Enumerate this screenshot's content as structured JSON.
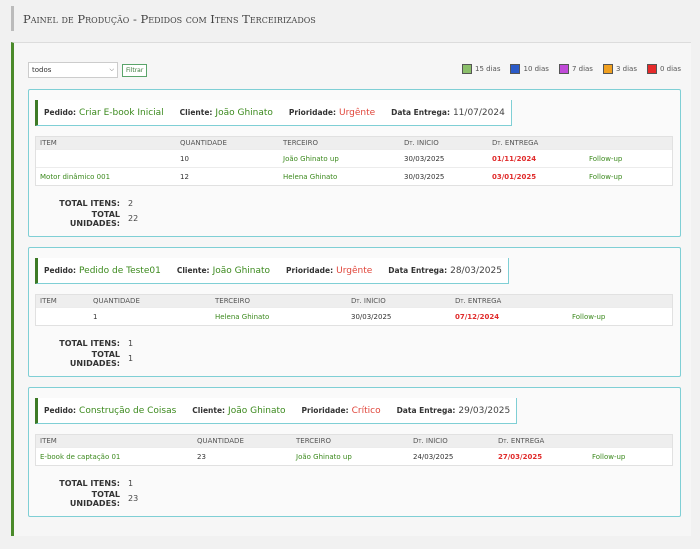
{
  "page": {
    "title": "Painel de Produção - Pedidos com Itens Terceirizados"
  },
  "filter": {
    "selected": "todos",
    "button_label": "Filtrar"
  },
  "legend": [
    {
      "label": "15 dias",
      "color": "#8bbf6a"
    },
    {
      "label": "10 dias",
      "color": "#2a5ac8"
    },
    {
      "label": "7 dias",
      "color": "#c04ad8"
    },
    {
      "label": "3 dias",
      "color": "#f0a020"
    },
    {
      "label": "0 dias",
      "color": "#e62a2a"
    }
  ],
  "labels": {
    "pedido": "Pedido:",
    "cliente": "Cliente:",
    "prioridade": "Prioridade:",
    "data_entrega": "Data Entrega:",
    "total_itens": "TOTAL ITENS:",
    "total_unidades": "TOTAL UNIDADES:",
    "columns": [
      "ITEM",
      "QUANTIDADE",
      "TERCEIRO",
      "Dt. INÍCIO",
      "Dt. ENTREGA",
      ""
    ]
  },
  "orders": [
    {
      "pedido": "Criar E-book Inicial",
      "cliente": "João Ghinato",
      "prioridade": "Urgênte",
      "data_entrega": "11/07/2024",
      "items": [
        {
          "item": "",
          "quantidade": "10",
          "terceiro": "João Ghinato up",
          "inicio": "30/03/2025",
          "entrega": "01/11/2024",
          "acao": "Follow-up"
        },
        {
          "item": "Motor dinâmico 001",
          "quantidade": "12",
          "terceiro": "Helena Ghinato",
          "inicio": "30/03/2025",
          "entrega": "03/01/2025",
          "acao": "Follow-up"
        }
      ],
      "total_itens": "2",
      "total_unidades": "22"
    },
    {
      "pedido": "Pedido de Teste01",
      "cliente": "João Ghinato",
      "prioridade": "Urgênte",
      "data_entrega": "28/03/2025",
      "items": [
        {
          "item": "",
          "quantidade": "1",
          "terceiro": "Helena Ghinato",
          "inicio": "30/03/2025",
          "entrega": "07/12/2024",
          "acao": "Follow-up"
        }
      ],
      "total_itens": "1",
      "total_unidades": "1"
    },
    {
      "pedido": "Construção de Coisas",
      "cliente": "João Ghinato",
      "prioridade": "Crítico",
      "data_entrega": "29/03/2025",
      "items": [
        {
          "item": "E-book de captação 01",
          "quantidade": "23",
          "terceiro": "João Ghinato up",
          "inicio": "24/03/2025",
          "entrega": "27/03/2025",
          "acao": "Follow-up"
        }
      ],
      "total_itens": "1",
      "total_unidades": "23"
    }
  ]
}
